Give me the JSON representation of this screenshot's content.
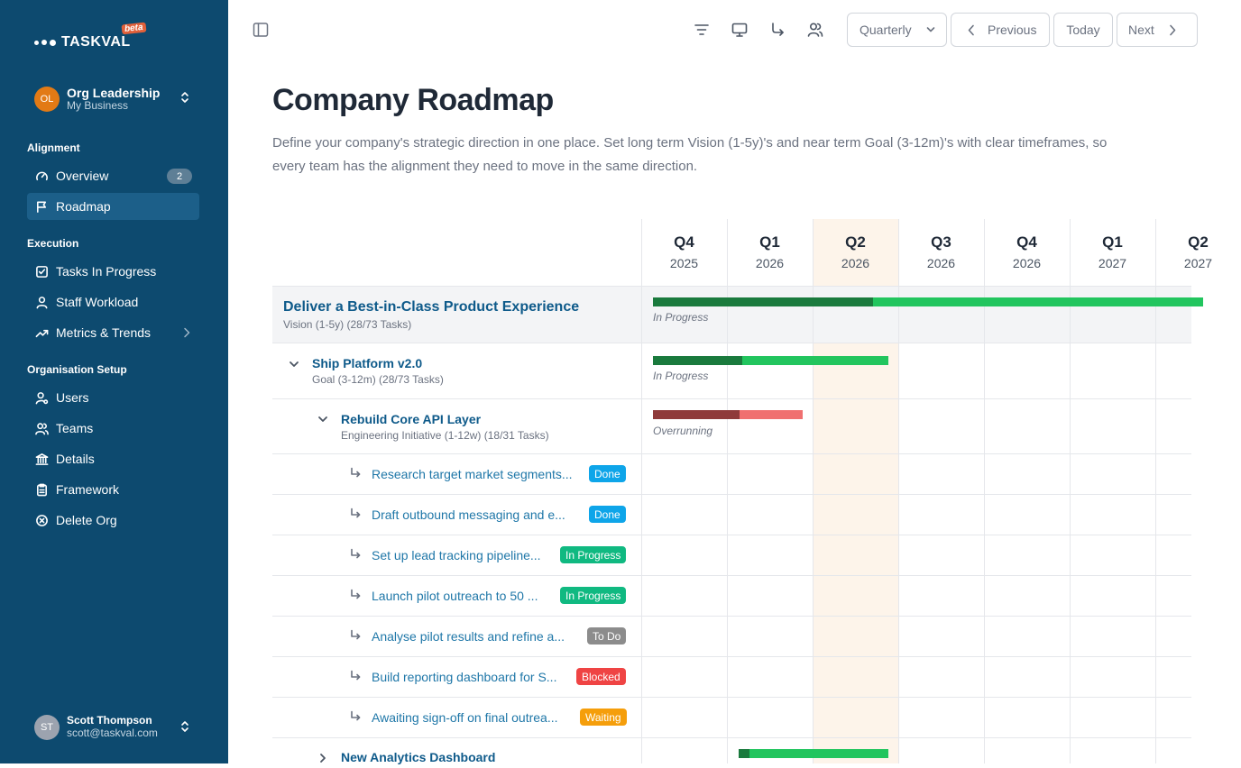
{
  "app": {
    "logo_text": "TASKVAL",
    "beta_label": "beta"
  },
  "org": {
    "initials": "OL",
    "name": "Org Leadership",
    "subtitle": "My Business"
  },
  "sidebar": {
    "sections": [
      {
        "title": "Alignment"
      },
      {
        "title": "Execution"
      },
      {
        "title": "Organisation Setup"
      }
    ],
    "items": [
      {
        "label": "Overview",
        "icon": "gauge-icon",
        "badge": "2"
      },
      {
        "label": "Roadmap",
        "icon": "flag-icon",
        "active": true
      },
      {
        "label": "Tasks In Progress",
        "icon": "checkbox-icon"
      },
      {
        "label": "Staff Workload",
        "icon": "user-icon"
      },
      {
        "label": "Metrics & Trends",
        "icon": "trending-icon",
        "has_submenu": true
      },
      {
        "label": "Users",
        "icon": "user-settings-icon"
      },
      {
        "label": "Teams",
        "icon": "users-icon"
      },
      {
        "label": "Details",
        "icon": "bank-icon"
      },
      {
        "label": "Framework",
        "icon": "clipboard-icon"
      },
      {
        "label": "Delete Org",
        "icon": "x-circle-icon"
      }
    ]
  },
  "user": {
    "initials": "ST",
    "name": "Scott Thompson",
    "email": "scott@taskval.com"
  },
  "toolbar": {
    "view_select": "Quarterly",
    "previous_label": "Previous",
    "today_label": "Today",
    "next_label": "Next"
  },
  "page": {
    "title": "Company Roadmap",
    "description": "Define your company's strategic direction in one place. Set long term Vision (1-5y)'s and near term Goal (3-12m)'s with clear timeframes, so every team has the alignment they need to move in the same direction."
  },
  "timeline": {
    "current_quarter_index": 2,
    "quarters": [
      {
        "q": "Q4",
        "year": "2025"
      },
      {
        "q": "Q1",
        "year": "2026"
      },
      {
        "q": "Q2",
        "year": "2026"
      },
      {
        "q": "Q3",
        "year": "2026"
      },
      {
        "q": "Q4",
        "year": "2026"
      },
      {
        "q": "Q1",
        "year": "2027"
      },
      {
        "q": "Q2",
        "year": "2027"
      }
    ]
  },
  "roadmap": {
    "vision": {
      "title": "Deliver a Best-in-Class Product Experience",
      "subtitle": "Vision (1-5y) (28/73 Tasks)",
      "status_label": "In Progress",
      "progress": 0.38
    },
    "goal": {
      "title": "Ship Platform v2.0",
      "subtitle": "Goal (3-12m) (28/73 Tasks)",
      "status_label": "In Progress",
      "progress": 0.38
    },
    "initiative": {
      "title": "Rebuild Core API Layer",
      "subtitle": "Engineering Initiative (1-12w) (18/31 Tasks)",
      "status_label": "Overrunning",
      "progress": 0.58
    },
    "tasks": [
      {
        "title": "Research target market segments...",
        "status": "Done",
        "color": "#0ea5e9"
      },
      {
        "title": "Draft outbound messaging and e...",
        "status": "Done",
        "color": "#0ea5e9"
      },
      {
        "title": "Set up lead tracking pipeline...",
        "status": "In Progress",
        "color": "#10b981"
      },
      {
        "title": "Launch pilot outreach to 50 ...",
        "status": "In Progress",
        "color": "#10b981"
      },
      {
        "title": "Analyse pilot results and refine a...",
        "status": "To Do",
        "color": "#8c8c8c"
      },
      {
        "title": "Build reporting dashboard for S...",
        "status": "Blocked",
        "color": "#ef4444"
      },
      {
        "title": "Awaiting sign-off on final outrea...",
        "status": "Waiting",
        "color": "#f59e0b"
      }
    ],
    "next_initiative": {
      "title": "New Analytics Dashboard",
      "progress": 0.07
    }
  },
  "colors": {
    "sidebar_bg": "#0d4a6f",
    "link": "#0e5a8a",
    "progress_dark": "#1a7a3d",
    "progress_light": "#22c55e",
    "overrun_dark": "#8f3a3a",
    "overrun_light": "#f07070",
    "current_quarter": "#fdf4ea"
  }
}
